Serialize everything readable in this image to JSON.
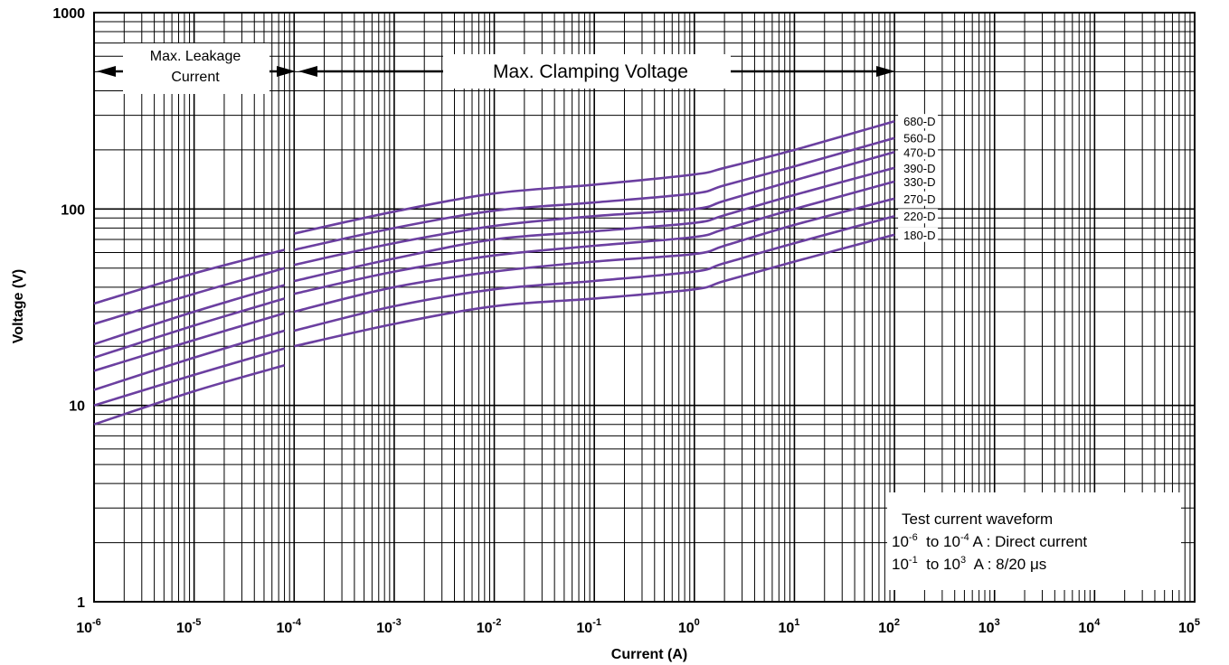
{
  "chart_data": {
    "type": "line",
    "title": "",
    "xlabel": "Current (A)",
    "ylabel": "Voltage (V)",
    "x_scale": "log",
    "y_scale": "log",
    "xlim": [
      1e-06,
      100000.0
    ],
    "ylim": [
      1,
      1000
    ],
    "grid": true,
    "colors": {
      "series": "#6b3fa0",
      "grid": "#000000"
    },
    "x_ticks": [
      {
        "base": "10",
        "exp": "-6",
        "value": 1e-06
      },
      {
        "base": "10",
        "exp": "-5",
        "value": 1e-05
      },
      {
        "base": "10",
        "exp": "-4",
        "value": 0.0001
      },
      {
        "base": "10",
        "exp": "-3",
        "value": 0.001
      },
      {
        "base": "10",
        "exp": "-2",
        "value": 0.01
      },
      {
        "base": "10",
        "exp": "-1",
        "value": 0.1
      },
      {
        "base": "10",
        "exp": "0",
        "value": 1
      },
      {
        "base": "10",
        "exp": "1",
        "value": 10
      },
      {
        "base": "10",
        "exp": "2",
        "value": 100
      },
      {
        "base": "10",
        "exp": "3",
        "value": 1000
      },
      {
        "base": "10",
        "exp": "4",
        "value": 10000
      },
      {
        "base": "10",
        "exp": "5",
        "value": 100000
      }
    ],
    "y_ticks": [
      {
        "label": "1",
        "value": 1
      },
      {
        "label": "10",
        "value": 10
      },
      {
        "label": "100",
        "value": 100
      },
      {
        "label": "1000",
        "value": 1000
      }
    ],
    "series": [
      {
        "name": "680-D",
        "leakage": [
          [
            1e-06,
            33
          ],
          [
            1e-05,
            47
          ],
          [
            8e-05,
            62
          ]
        ],
        "clamping": [
          [
            0.0001,
            75
          ],
          [
            0.001,
            97
          ],
          [
            0.01,
            120
          ],
          [
            0.1,
            133
          ],
          [
            1,
            150
          ],
          [
            2,
            162
          ],
          [
            10,
            200
          ],
          [
            100,
            280
          ]
        ]
      },
      {
        "name": "560-D",
        "leakage": [
          [
            1e-06,
            26
          ],
          [
            1e-05,
            37
          ],
          [
            8e-05,
            50
          ]
        ],
        "clamping": [
          [
            0.0001,
            62
          ],
          [
            0.001,
            80
          ],
          [
            0.01,
            98
          ],
          [
            0.1,
            108
          ],
          [
            1,
            120
          ],
          [
            2,
            132
          ],
          [
            10,
            165
          ],
          [
            100,
            230
          ]
        ]
      },
      {
        "name": "470-D",
        "leakage": [
          [
            1e-06,
            20.5
          ],
          [
            1e-05,
            30
          ],
          [
            8e-05,
            41
          ]
        ],
        "clamping": [
          [
            0.0001,
            52
          ],
          [
            0.001,
            67
          ],
          [
            0.01,
            82
          ],
          [
            0.1,
            92
          ],
          [
            1,
            100
          ],
          [
            2,
            110
          ],
          [
            10,
            140
          ],
          [
            100,
            195
          ]
        ]
      },
      {
        "name": "390-D",
        "leakage": [
          [
            1e-06,
            17.5
          ],
          [
            1e-05,
            25.5
          ],
          [
            8e-05,
            35
          ]
        ],
        "clamping": [
          [
            0.0001,
            43
          ],
          [
            0.001,
            56
          ],
          [
            0.01,
            70
          ],
          [
            0.1,
            77
          ],
          [
            1,
            85
          ],
          [
            2,
            93
          ],
          [
            10,
            118
          ],
          [
            100,
            162
          ]
        ]
      },
      {
        "name": "330-D",
        "leakage": [
          [
            1e-06,
            15
          ],
          [
            1e-05,
            21.5
          ],
          [
            8e-05,
            29.5
          ]
        ],
        "clamping": [
          [
            0.0001,
            37
          ],
          [
            0.001,
            48
          ],
          [
            0.01,
            58
          ],
          [
            0.1,
            65
          ],
          [
            1,
            72
          ],
          [
            2,
            79
          ],
          [
            10,
            100
          ],
          [
            100,
            138
          ]
        ]
      },
      {
        "name": "270-D",
        "leakage": [
          [
            1e-06,
            12
          ],
          [
            1e-05,
            17.5
          ],
          [
            8e-05,
            24
          ]
        ],
        "clamping": [
          [
            0.0001,
            30
          ],
          [
            0.001,
            40
          ],
          [
            0.01,
            48
          ],
          [
            0.1,
            54
          ],
          [
            1,
            59
          ],
          [
            2,
            65
          ],
          [
            10,
            83
          ],
          [
            100,
            113
          ]
        ]
      },
      {
        "name": "220-D",
        "leakage": [
          [
            1e-06,
            10
          ],
          [
            1e-05,
            14.3
          ],
          [
            8e-05,
            19.5
          ]
        ],
        "clamping": [
          [
            0.0001,
            24
          ],
          [
            0.001,
            32
          ],
          [
            0.01,
            39
          ],
          [
            0.1,
            43
          ],
          [
            1,
            48
          ],
          [
            2,
            53
          ],
          [
            10,
            67
          ],
          [
            100,
            92
          ]
        ]
      },
      {
        "name": "180-D",
        "leakage": [
          [
            1e-06,
            8
          ],
          [
            1e-05,
            11.8
          ],
          [
            8e-05,
            16
          ]
        ],
        "clamping": [
          [
            0.0001,
            20
          ],
          [
            0.001,
            26
          ],
          [
            0.01,
            32
          ],
          [
            0.1,
            35
          ],
          [
            1,
            39
          ],
          [
            2,
            43
          ],
          [
            10,
            54
          ],
          [
            100,
            74
          ]
        ]
      }
    ],
    "annotations": {
      "leakage_label_line1": "Max. Leakage",
      "leakage_label_line2": "Current",
      "clamping_label": "Max. Clamping Voltage",
      "waveform_title": "Test current waveform",
      "waveform_line1_base": "10",
      "waveform_line1_exp": "-6",
      "waveform_line1_mid": "  to 10",
      "waveform_line1_exp2": "-4",
      "waveform_line1_rest": " A : Direct current",
      "waveform_line2_base": "10",
      "waveform_line2_exp": "-1",
      "waveform_line2_mid": "  to 10",
      "waveform_line2_exp2": "3",
      "waveform_line2_rest": "  A : 8/20 μs"
    }
  }
}
